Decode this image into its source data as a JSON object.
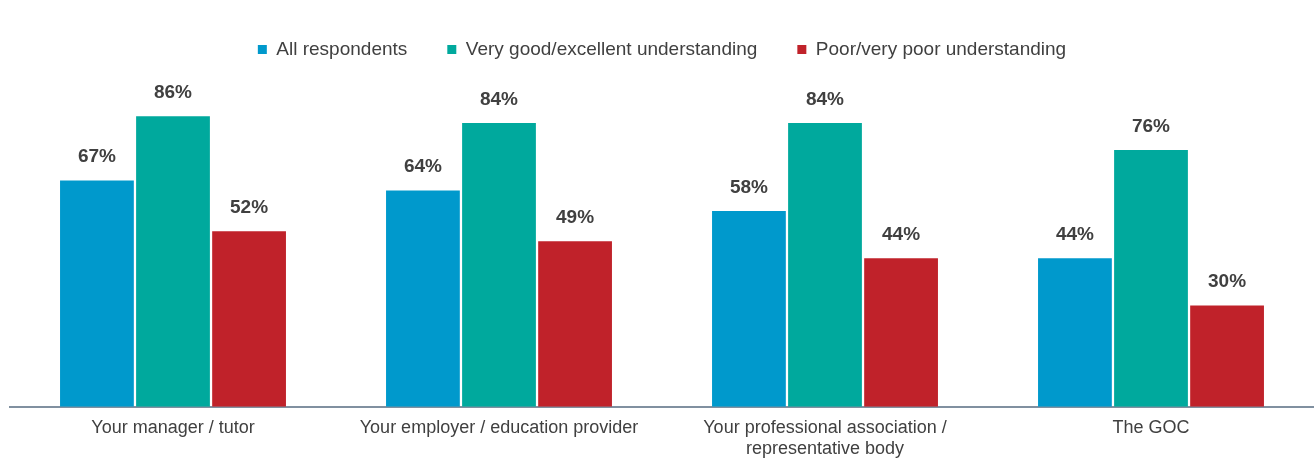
{
  "chart_data": {
    "type": "bar",
    "categories": [
      "Your manager / tutor",
      "Your employer / education provider",
      "Your professional association / representative body",
      "The GOC"
    ],
    "series": [
      {
        "name": "All respondents",
        "color": "#0099cc",
        "values": [
          67,
          64,
          58,
          44
        ],
        "value_labels": [
          "67%",
          "64%",
          "58%",
          "44%"
        ]
      },
      {
        "name": "Very good/excellent understanding",
        "color": "#00a99d",
        "values": [
          86,
          84,
          84,
          76
        ],
        "value_labels": [
          "86%",
          "84%",
          "84%",
          "76%"
        ]
      },
      {
        "name": "Poor/very poor understanding",
        "color": "#c0222a",
        "values": [
          52,
          49,
          44,
          30
        ],
        "value_labels": [
          "52%",
          "49%",
          "44%",
          "30%"
        ]
      }
    ],
    "legend": "top",
    "grid": false
  }
}
